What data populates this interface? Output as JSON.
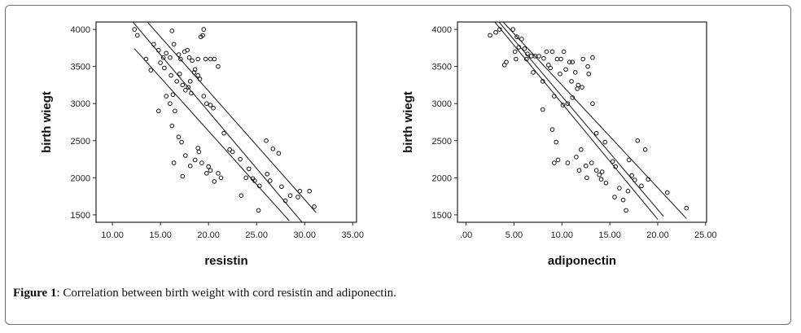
{
  "caption": {
    "label": "Figure 1",
    "text": ": Correlation between birth weight with cord resistin and adiponectin."
  },
  "chart_data": [
    {
      "type": "scatter",
      "title": "",
      "xlabel": "resistin",
      "ylabel": "birth wiegt",
      "xlim": [
        8.3,
        35.4
      ],
      "ylim": [
        1400,
        4100
      ],
      "xticks": [
        "10.00",
        "15.00",
        "20.00",
        "25.00",
        "30.00",
        "35.00"
      ],
      "xtick_values": [
        10,
        15,
        20,
        25,
        30,
        35
      ],
      "yticks": [
        "1500",
        "2000",
        "2500",
        "3000",
        "3500",
        "4000"
      ],
      "ytick_values": [
        1500,
        2000,
        2500,
        3000,
        3500,
        4000
      ],
      "grid": false,
      "points": [
        [
          12.3,
          4000
        ],
        [
          12.6,
          3920
        ],
        [
          14.3,
          3800
        ],
        [
          14.8,
          3720
        ],
        [
          15.3,
          3620
        ],
        [
          15.6,
          3680
        ],
        [
          16.0,
          3620
        ],
        [
          16.2,
          3980
        ],
        [
          16.4,
          3800
        ],
        [
          16.9,
          3660
        ],
        [
          17.1,
          3600
        ],
        [
          17.5,
          3700
        ],
        [
          17.8,
          3720
        ],
        [
          18.0,
          3620
        ],
        [
          18.3,
          3580
        ],
        [
          18.6,
          3460
        ],
        [
          18.9,
          3600
        ],
        [
          19.2,
          3900
        ],
        [
          19.4,
          3920
        ],
        [
          19.5,
          4000
        ],
        [
          19.7,
          3600
        ],
        [
          20.2,
          3600
        ],
        [
          20.6,
          3600
        ],
        [
          21.0,
          3500
        ],
        [
          13.5,
          3600
        ],
        [
          14.0,
          3450
        ],
        [
          15.0,
          3550
        ],
        [
          15.4,
          3480
        ],
        [
          15.6,
          3100
        ],
        [
          16.1,
          3380
        ],
        [
          16.3,
          3120
        ],
        [
          16.7,
          3300
        ],
        [
          17.0,
          3400
        ],
        [
          17.3,
          3250
        ],
        [
          17.6,
          3180
        ],
        [
          17.9,
          3220
        ],
        [
          18.1,
          3300
        ],
        [
          18.2,
          3140
        ],
        [
          18.5,
          3420
        ],
        [
          18.9,
          3380
        ],
        [
          19.1,
          3330
        ],
        [
          19.5,
          3100
        ],
        [
          19.8,
          3000
        ],
        [
          20.2,
          2980
        ],
        [
          20.5,
          2940
        ],
        [
          14.8,
          2900
        ],
        [
          16.0,
          3000
        ],
        [
          16.5,
          2900
        ],
        [
          16.2,
          2700
        ],
        [
          16.9,
          2550
        ],
        [
          17.2,
          2480
        ],
        [
          17.6,
          2300
        ],
        [
          18.1,
          2160
        ],
        [
          18.6,
          2240
        ],
        [
          19.0,
          2350
        ],
        [
          19.3,
          2200
        ],
        [
          19.8,
          2060
        ],
        [
          20.0,
          2150
        ],
        [
          20.6,
          1950
        ],
        [
          21.0,
          2060
        ],
        [
          21.3,
          2000
        ],
        [
          16.4,
          2200
        ],
        [
          17.3,
          2020
        ],
        [
          18.9,
          2400
        ],
        [
          21.6,
          2600
        ],
        [
          22.5,
          2350
        ],
        [
          23.3,
          2250
        ],
        [
          23.9,
          2000
        ],
        [
          24.2,
          2120
        ],
        [
          24.8,
          1960
        ],
        [
          25.2,
          1560
        ],
        [
          23.4,
          1760
        ],
        [
          26.0,
          2500
        ],
        [
          26.1,
          2050
        ],
        [
          26.4,
          1960
        ],
        [
          26.7,
          2390
        ],
        [
          27.3,
          2330
        ],
        [
          27.6,
          1880
        ],
        [
          28.5,
          1760
        ],
        [
          29.3,
          1740
        ],
        [
          28.0,
          1690
        ],
        [
          29.5,
          1820
        ],
        [
          30.5,
          1820
        ],
        [
          31.0,
          1610
        ],
        [
          22.2,
          2380
        ],
        [
          20.2,
          2100
        ],
        [
          25.3,
          1890
        ],
        [
          24.6,
          1990
        ]
      ],
      "fit_lines": [
        {
          "x1": 12.0,
          "y1": 4120,
          "x2": 29.8,
          "y2": 1390
        },
        {
          "x1": 13.5,
          "y1": 4120,
          "x2": 31.2,
          "y2": 1530
        },
        {
          "x1": 12.3,
          "y1": 3740,
          "x2": 28.4,
          "y2": 1420
        }
      ]
    },
    {
      "type": "scatter",
      "title": "",
      "xlabel": "adiponectin",
      "ylabel": "birth wiegt",
      "xlim": [
        -0.9,
        25.1
      ],
      "ylim": [
        1400,
        4100
      ],
      "xticks": [
        ".00",
        "5.00",
        "10.00",
        "15.00",
        "20.00",
        "25.00"
      ],
      "xtick_values": [
        0,
        5,
        10,
        15,
        20,
        25
      ],
      "yticks": [
        "1500",
        "2000",
        "2500",
        "3000",
        "3500",
        "4000"
      ],
      "ytick_values": [
        1500,
        2000,
        2500,
        3000,
        3500,
        4000
      ],
      "grid": false,
      "points": [
        [
          2.5,
          3920
        ],
        [
          3.1,
          3960
        ],
        [
          3.5,
          4000
        ],
        [
          4.9,
          4000
        ],
        [
          5.3,
          3900
        ],
        [
          5.8,
          3870
        ],
        [
          5.1,
          3700
        ],
        [
          5.5,
          3760
        ],
        [
          6.1,
          3740
        ],
        [
          6.4,
          3670
        ],
        [
          6.8,
          3640
        ],
        [
          7.2,
          3640
        ],
        [
          7.6,
          3640
        ],
        [
          8.1,
          3610
        ],
        [
          8.4,
          3700
        ],
        [
          9.0,
          3700
        ],
        [
          9.5,
          3600
        ],
        [
          9.9,
          3600
        ],
        [
          10.2,
          3700
        ],
        [
          10.8,
          3560
        ],
        [
          11.1,
          3560
        ],
        [
          12.2,
          3600
        ],
        [
          12.7,
          3500
        ],
        [
          13.2,
          3620
        ],
        [
          4.0,
          3520
        ],
        [
          4.2,
          3560
        ],
        [
          5.2,
          3600
        ],
        [
          6.3,
          3600
        ],
        [
          7.0,
          3420
        ],
        [
          8.6,
          3520
        ],
        [
          8.8,
          3480
        ],
        [
          9.8,
          3400
        ],
        [
          10.4,
          3460
        ],
        [
          11.0,
          3300
        ],
        [
          11.4,
          3420
        ],
        [
          11.7,
          3250
        ],
        [
          12.1,
          3220
        ],
        [
          12.8,
          3400
        ],
        [
          13.2,
          3000
        ],
        [
          8.0,
          3300
        ],
        [
          9.2,
          3100
        ],
        [
          10.1,
          2980
        ],
        [
          10.6,
          3000
        ],
        [
          11.1,
          3080
        ],
        [
          11.6,
          3200
        ],
        [
          8.0,
          2920
        ],
        [
          9.0,
          2650
        ],
        [
          9.4,
          2480
        ],
        [
          9.2,
          2200
        ],
        [
          9.6,
          2240
        ],
        [
          10.6,
          2200
        ],
        [
          11.5,
          2280
        ],
        [
          12.0,
          2380
        ],
        [
          12.5,
          2160
        ],
        [
          11.8,
          2100
        ],
        [
          12.6,
          2000
        ],
        [
          13.1,
          2200
        ],
        [
          13.6,
          2100
        ],
        [
          13.9,
          2040
        ],
        [
          14.1,
          1980
        ],
        [
          14.6,
          1930
        ],
        [
          13.6,
          2600
        ],
        [
          14.5,
          2480
        ],
        [
          15.3,
          2220
        ],
        [
          15.6,
          2150
        ],
        [
          16.0,
          1860
        ],
        [
          16.4,
          1700
        ],
        [
          16.7,
          1560
        ],
        [
          17.0,
          2240
        ],
        [
          17.3,
          2030
        ],
        [
          17.6,
          1970
        ],
        [
          18.3,
          1890
        ],
        [
          18.7,
          2380
        ],
        [
          17.9,
          2500
        ],
        [
          19.0,
          1980
        ],
        [
          21.0,
          1800
        ],
        [
          23.0,
          1590
        ],
        [
          15.5,
          1740
        ],
        [
          16.9,
          1820
        ],
        [
          14.2,
          2080
        ]
      ],
      "fit_lines": [
        {
          "x1": 2.8,
          "y1": 4130,
          "x2": 20.0,
          "y2": 1440
        },
        {
          "x1": 3.3,
          "y1": 4120,
          "x2": 20.6,
          "y2": 1480
        },
        {
          "x1": 3.5,
          "y1": 4150,
          "x2": 23.0,
          "y2": 1450
        }
      ]
    }
  ]
}
